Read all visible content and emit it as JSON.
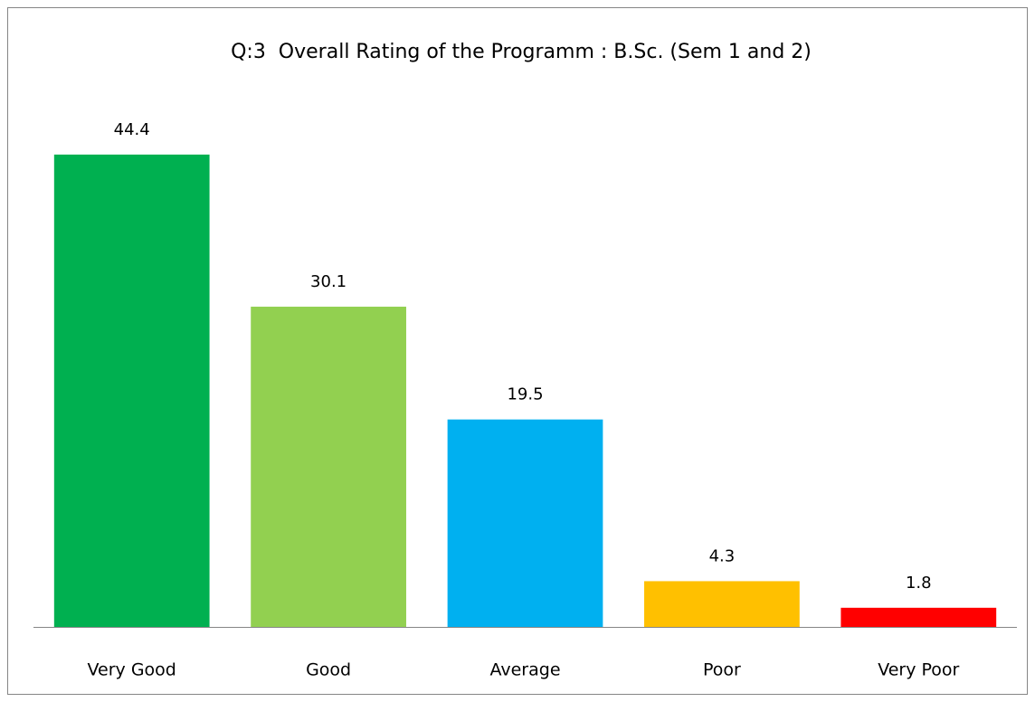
{
  "chart_data": {
    "type": "bar",
    "title": "Q:3  Overall Rating of the Programm : B.Sc. (Sem 1 and 2)",
    "categories": [
      "Very Good",
      "Good",
      "Average",
      "Poor",
      "Very Poor"
    ],
    "values": [
      44.4,
      30.1,
      19.5,
      4.3,
      1.8
    ],
    "colors": [
      "#00b050",
      "#92d050",
      "#00b0f0",
      "#ffc000",
      "#ff0000"
    ],
    "ylim": [
      0,
      50
    ]
  }
}
